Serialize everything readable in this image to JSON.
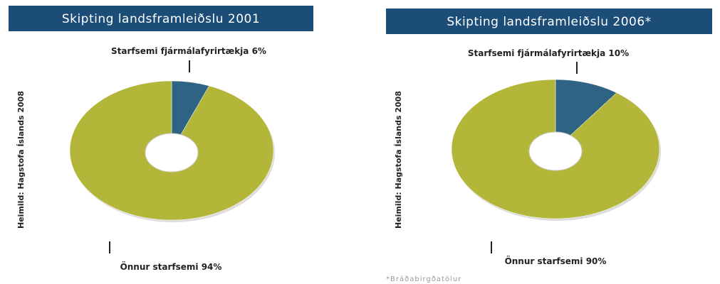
{
  "chart_data": [
    {
      "type": "pie",
      "title": "Skipting landsframleiðslu 2001",
      "categories": [
        "Starfsemi fjármálafyrirtækja",
        "Önnur starfsemi"
      ],
      "values": [
        6,
        94
      ],
      "value_labels": [
        "6%",
        "94%"
      ],
      "colors": [
        "#2e6384",
        "#b4b63a"
      ],
      "source": "Heimild: Hagstofa Íslands 2008"
    },
    {
      "type": "pie",
      "title": "Skipting landsframleiðslu 2006*",
      "categories": [
        "Starfsemi fjármálafyrirtækja",
        "Önnur starfsemi"
      ],
      "values": [
        10,
        90
      ],
      "value_labels": [
        "10%",
        "90%"
      ],
      "colors": [
        "#2e6384",
        "#b4b63a"
      ],
      "source": "Heimild: Hagstofa Íslands 2008",
      "footnote": "*Bráðabirgðatölur"
    }
  ]
}
